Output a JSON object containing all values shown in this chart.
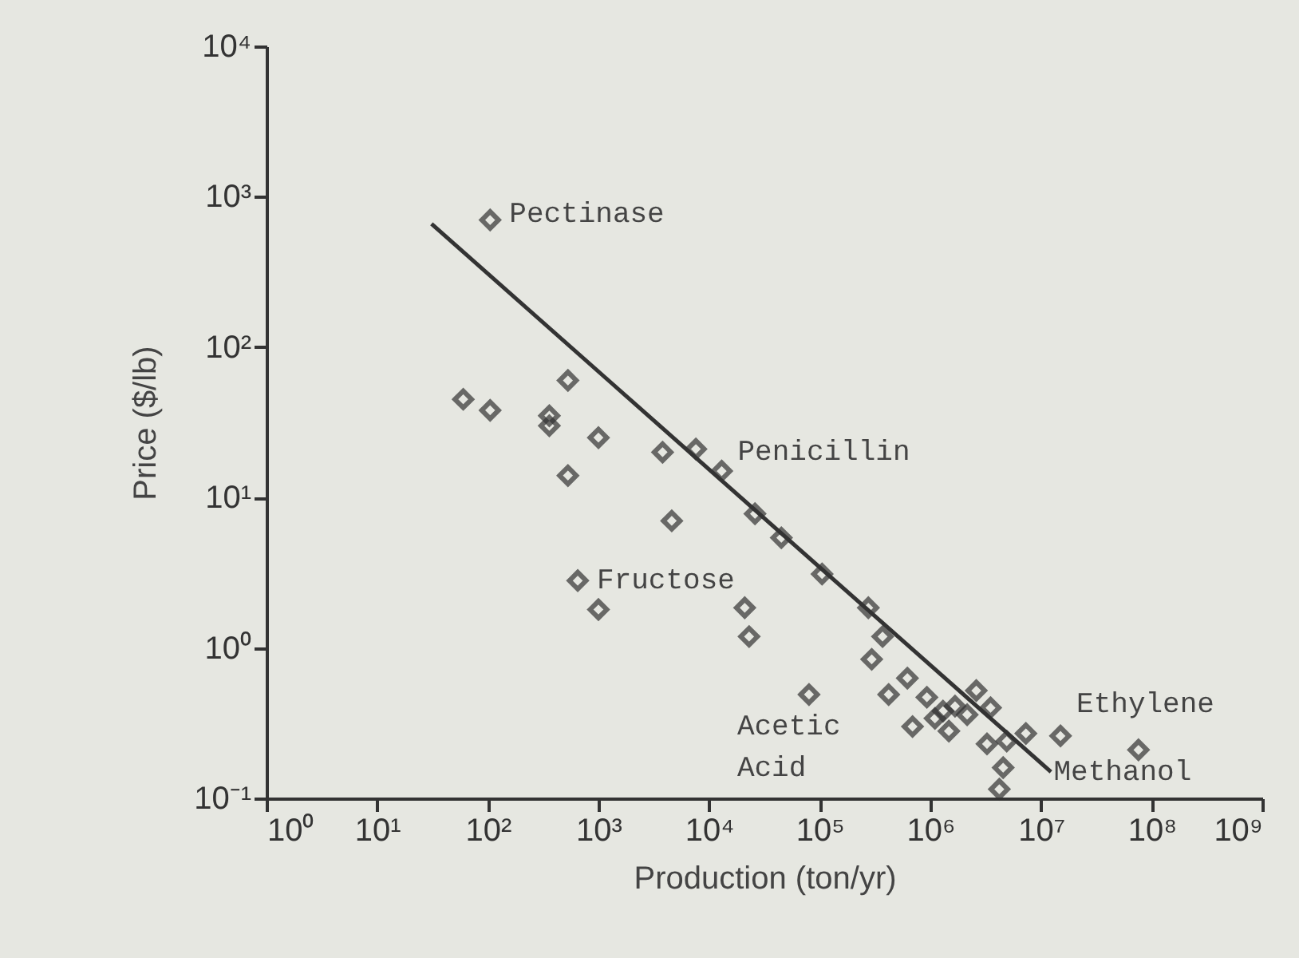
{
  "chart_data": {
    "type": "scatter",
    "xlabel": "Production (ton/yr)",
    "ylabel": "Price ($/lb)",
    "log": "xy",
    "grid": false,
    "xlim": [
      1,
      1000000000
    ],
    "ylim": [
      0.1,
      10000
    ],
    "xticks": [
      {
        "value": 1,
        "label": "10⁰"
      },
      {
        "value": 10,
        "label": "10¹"
      },
      {
        "value": 100,
        "label": "10²"
      },
      {
        "value": 1000,
        "label": "10³"
      },
      {
        "value": 10000,
        "label": "10⁴"
      },
      {
        "value": 100000,
        "label": "10⁵"
      },
      {
        "value": 1000000,
        "label": "10⁶"
      },
      {
        "value": 10000000,
        "label": "10⁷"
      },
      {
        "value": 100000000,
        "label": "10⁸"
      },
      {
        "value": 1000000000,
        "label": "10⁹"
      }
    ],
    "yticks": [
      {
        "value": 0.1,
        "label": "10⁻¹"
      },
      {
        "value": 1,
        "label": "10⁰"
      },
      {
        "value": 10,
        "label": "10¹"
      },
      {
        "value": 100,
        "label": "10²"
      },
      {
        "value": 1000,
        "label": "10³"
      },
      {
        "value": 10000,
        "label": "10⁴"
      }
    ],
    "series": [
      {
        "type": "scatter",
        "marker": "diamond",
        "color": "#333333",
        "x": [
          105,
          60,
          105,
          530,
          360,
          360,
          1000,
          530,
          3800,
          7600,
          13000,
          4600,
          26000,
          45000,
          650,
          1000,
          21000,
          23000,
          105000,
          275000,
          370000,
          295000,
          80000,
          620000,
          420000,
          930000,
          690000,
          1100000,
          1300000,
          1470000,
          1670000,
          2150000,
          2600000,
          3500000,
          3250000,
          4900000,
          7300000,
          4550000,
          4200000,
          15000000,
          76000000
        ],
        "values": [
          700,
          45,
          38,
          60,
          35,
          30,
          25,
          14,
          20,
          21,
          15,
          7,
          7.8,
          5.4,
          2.8,
          1.8,
          1.85,
          1.19,
          3.1,
          1.85,
          1.19,
          0.84,
          0.49,
          0.63,
          0.49,
          0.47,
          0.3,
          0.34,
          0.38,
          0.28,
          0.41,
          0.36,
          0.52,
          0.4,
          0.23,
          0.24,
          0.27,
          0.16,
          0.115,
          0.26,
          0.21
        ]
      },
      {
        "type": "line",
        "color": "#333333",
        "x": [
          31,
          12300000
        ],
        "values": [
          660,
          0.15
        ]
      }
    ],
    "annotations": [
      {
        "text": "Pectinase",
        "x": 105,
        "y": 700
      },
      {
        "text": "Penicillin",
        "x": 13000,
        "y": 15
      },
      {
        "text": "Fructose",
        "x": 650,
        "y": 2.8
      },
      {
        "text": "Acetic\nAcid",
        "x": 80000,
        "y": 0.49
      },
      {
        "text": "Ethylene",
        "x": 15000000,
        "y": 0.26
      },
      {
        "text": "Methanol",
        "x": 4200000,
        "y": 0.115
      }
    ]
  }
}
